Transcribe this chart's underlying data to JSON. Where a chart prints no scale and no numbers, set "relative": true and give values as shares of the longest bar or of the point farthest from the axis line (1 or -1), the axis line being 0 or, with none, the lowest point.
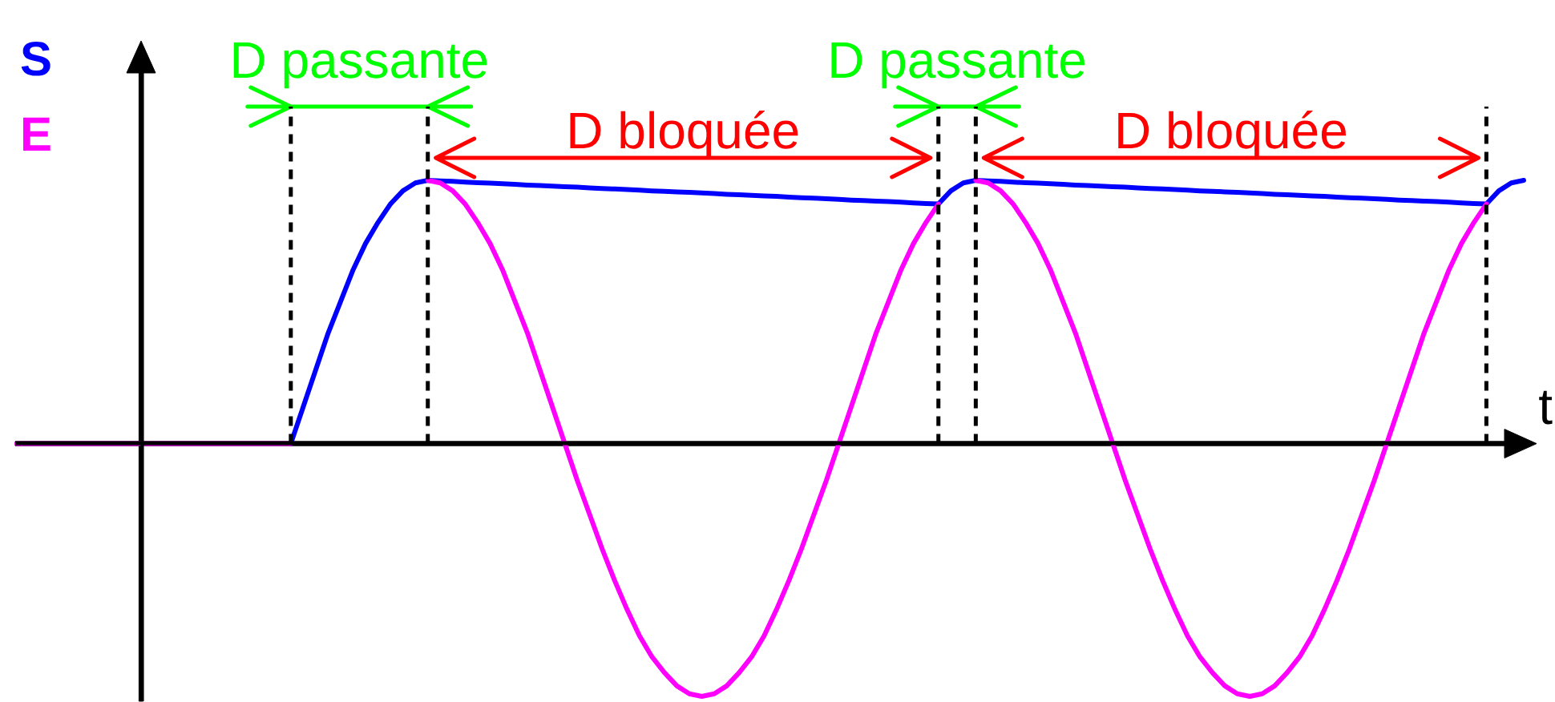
{
  "chart_data": {
    "type": "line",
    "relative": true,
    "xlabel": "t",
    "legend": "top left",
    "categories": [
      null,
      null,
      null,
      null,
      null,
      null,
      null,
      null,
      null,
      null,
      null,
      null,
      null,
      null,
      null,
      null,
      null,
      null,
      null,
      null,
      null,
      null,
      null,
      null,
      null,
      null,
      null,
      null,
      null,
      null,
      null,
      null,
      null,
      null,
      null,
      null,
      null,
      null,
      null,
      null,
      null,
      null,
      null,
      null,
      null,
      null,
      null,
      null,
      null,
      null,
      null,
      null,
      null,
      null,
      null,
      null,
      null,
      null,
      null,
      null,
      null,
      null,
      null,
      null,
      null,
      null,
      null,
      null,
      null,
      null,
      null,
      null,
      null,
      null,
      null,
      null,
      null,
      null,
      null,
      null,
      null,
      null,
      null,
      null,
      null,
      null,
      null,
      null,
      null,
      null,
      null,
      null,
      null,
      null,
      null,
      null,
      null,
      null,
      null,
      null,
      null,
      null,
      null,
      null,
      null,
      null,
      null,
      null,
      null,
      null,
      null,
      null,
      null,
      null,
      null,
      null,
      null,
      null,
      null,
      null,
      null,
      null
    ],
    "series": [
      {
        "name": "S",
        "color": "#0000ff",
        "values": [
          null,
          null,
          null,
          null,
          null,
          null,
          null,
          null,
          null,
          null,
          null,
          null,
          null,
          null,
          null,
          null,
          null,
          null,
          null,
          null,
          null,
          null,
          0,
          0.14,
          0.28,
          0.42,
          0.54,
          0.66,
          0.76,
          0.84,
          0.91,
          0.96,
          0.99,
          1,
          0.998,
          0.996,
          0.993,
          0.991,
          0.989,
          0.987,
          0.985,
          0.982,
          0.98,
          0.978,
          0.976,
          0.974,
          0.971,
          0.969,
          0.967,
          0.965,
          0.963,
          0.96,
          0.958,
          0.956,
          0.954,
          0.952,
          0.95,
          0.947,
          0.945,
          0.943,
          0.941,
          0.939,
          0.936,
          0.934,
          0.932,
          0.93,
          0.928,
          0.925,
          0.923,
          0.921,
          0.919,
          0.917,
          0.914,
          0.912,
          0.91,
          0.96,
          0.99,
          1,
          0.998,
          0.996,
          0.993,
          0.991,
          0.989,
          0.987,
          0.985,
          0.982,
          0.98,
          0.978,
          0.976,
          0.974,
          0.971,
          0.969,
          0.967,
          0.965,
          0.963,
          0.96,
          0.958,
          0.956,
          0.954,
          0.952,
          0.95,
          0.947,
          0.945,
          0.943,
          0.941,
          0.939,
          0.936,
          0.934,
          0.932,
          0.93,
          0.928,
          0.925,
          0.923,
          0.921,
          0.919,
          0.917,
          0.914,
          0.912,
          0.91,
          0.96,
          0.99,
          1
        ]
      },
      {
        "name": "E",
        "color": "#ff00ff",
        "values": [
          0,
          0,
          0,
          0,
          0,
          0,
          0,
          0,
          0,
          0,
          0,
          0,
          0,
          0,
          0,
          0,
          0,
          0,
          0,
          0,
          0,
          0,
          0,
          null,
          null,
          null,
          null,
          null,
          null,
          null,
          null,
          null,
          null,
          1,
          0.99,
          0.96,
          0.91,
          0.84,
          0.76,
          0.66,
          0.54,
          0.42,
          0.28,
          0.14,
          0,
          -0.14,
          -0.27,
          -0.4,
          -0.52,
          -0.63,
          -0.73,
          -0.81,
          -0.87,
          -0.92,
          -0.95,
          -0.96,
          -0.95,
          -0.92,
          -0.87,
          -0.81,
          -0.73,
          -0.63,
          -0.52,
          -0.4,
          -0.27,
          -0.14,
          0,
          0.14,
          0.28,
          0.42,
          0.54,
          0.66,
          0.76,
          0.84,
          0.91,
          null,
          null,
          1,
          0.99,
          0.96,
          0.91,
          0.84,
          0.76,
          0.66,
          0.54,
          0.42,
          0.28,
          0.14,
          0,
          -0.14,
          -0.27,
          -0.4,
          -0.52,
          -0.63,
          -0.73,
          -0.81,
          -0.87,
          -0.92,
          -0.95,
          -0.96,
          -0.95,
          -0.92,
          -0.87,
          -0.81,
          -0.73,
          -0.63,
          -0.52,
          -0.4,
          -0.27,
          -0.14,
          0,
          0.14,
          0.28,
          0.42,
          0.54,
          0.66,
          0.76,
          0.84,
          0.91,
          null,
          null,
          null
        ]
      }
    ],
    "annotations": [
      "D passante",
      "D bloquée",
      "D passante",
      "D bloquée"
    ]
  }
}
